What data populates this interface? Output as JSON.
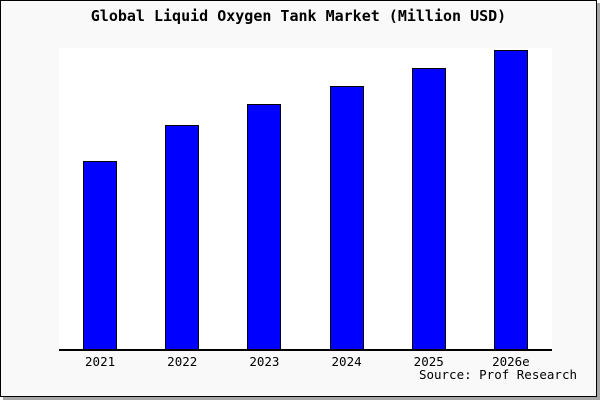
{
  "colors": {
    "page_background": "#f9f9f9",
    "plot_background": "#ffffff",
    "bar_fill": "#0000ff",
    "bar_border": "#000000",
    "frame_border": "#000000",
    "frame_shadow": "#a6a6a6",
    "text": "#000000"
  },
  "chart_data": {
    "type": "bar",
    "title": "Global Liquid Oxygen Tank Market (Million USD)",
    "categories": [
      "2021",
      "2022",
      "2023",
      "2024",
      "2025",
      "2026e"
    ],
    "values": [
      63,
      75,
      82,
      88,
      94,
      100
    ],
    "value_note": "No y-axis shown; values are bar heights relative to tallest bar = 100",
    "xlabel": "",
    "ylabel": "",
    "ylim": [
      0,
      100
    ],
    "grid": false,
    "legend": false,
    "source_note": "Source: Prof Research"
  }
}
